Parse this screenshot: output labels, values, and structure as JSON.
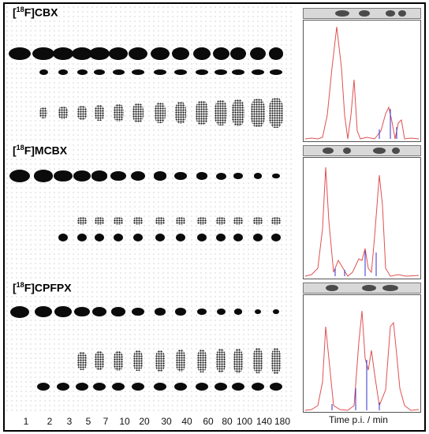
{
  "panels": [
    {
      "title_prefix": "[",
      "title_sup": "18",
      "title_suffix": "F]CBX"
    },
    {
      "title_prefix": "[",
      "title_sup": "18",
      "title_suffix": "F]MCBX"
    },
    {
      "title_prefix": "[",
      "title_sup": "18",
      "title_suffix": "F]CPFPX"
    }
  ],
  "time_points": [
    "1",
    "2",
    "3",
    "5",
    "7",
    "10",
    "20",
    "30",
    "40",
    "60",
    "80",
    "100",
    "140",
    "180"
  ],
  "axis_label": "Time p.i. / min",
  "colors": {
    "trace": "#e05050",
    "baseline": "#3030cc",
    "spot": "#0b0b0b"
  }
}
